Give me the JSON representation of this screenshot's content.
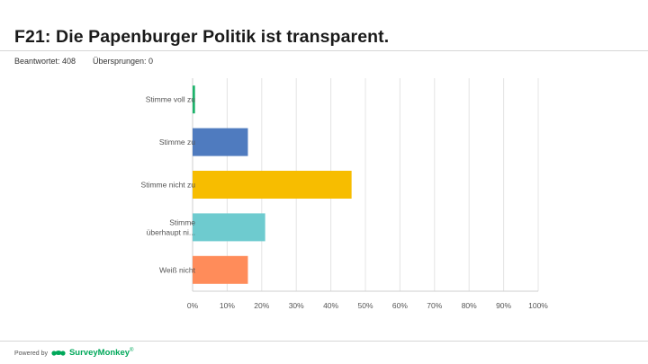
{
  "page": {
    "title": "F21: Die Papenburger Politik ist transparent.",
    "answered": "Beantwortet: 408",
    "skipped": "Übersprungen: 0"
  },
  "footer": {
    "powered_by": "Powered by",
    "brand": "SurveyMonkey",
    "brand_mark": "®",
    "brand_color": "#00a85a"
  },
  "chart_data": {
    "type": "bar",
    "orientation": "horizontal",
    "title": "F21: Die Papenburger Politik ist transparent.",
    "xlabel": "",
    "ylabel": "",
    "xlim": [
      0,
      100
    ],
    "unit": "%",
    "grid": true,
    "categories": [
      [
        "Stimme voll zu"
      ],
      [
        "Stimme zu"
      ],
      [
        "Stimme nicht zu"
      ],
      [
        "Stimme",
        "überhaupt ni..."
      ],
      [
        "Weiß nicht"
      ]
    ],
    "values": [
      0.7,
      16,
      46,
      21,
      16
    ],
    "colors": [
      "#1db36b",
      "#4f7bbf",
      "#f7bd00",
      "#6ecbcf",
      "#ff8c5a"
    ],
    "ticks": [
      0,
      10,
      20,
      30,
      40,
      50,
      60,
      70,
      80,
      90,
      100
    ],
    "tick_labels": [
      "0%",
      "10%",
      "20%",
      "30%",
      "40%",
      "50%",
      "60%",
      "70%",
      "80%",
      "90%",
      "100%"
    ]
  }
}
